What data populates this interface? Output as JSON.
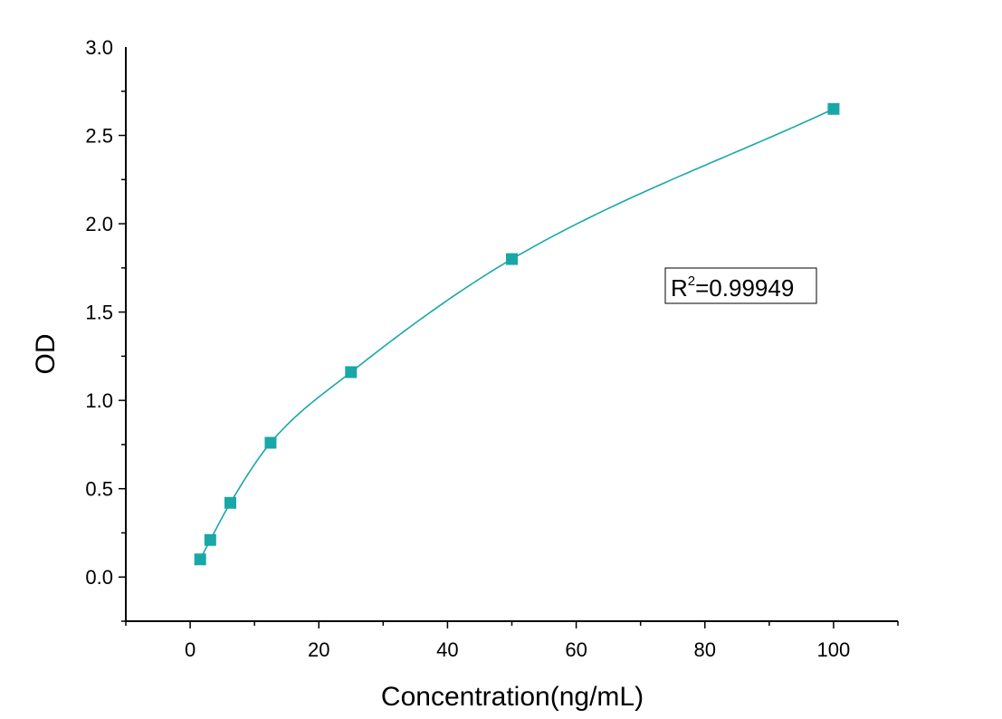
{
  "chart_data": {
    "type": "scatter",
    "xlabel": "Concentration(ng/mL)",
    "ylabel": "OD",
    "xlim": [
      -10,
      110
    ],
    "ylim": [
      -0.25,
      3.0
    ],
    "x_ticks": [
      0,
      20,
      40,
      60,
      80,
      100
    ],
    "y_ticks": [
      0.0,
      0.5,
      1.0,
      1.5,
      2.0,
      2.5,
      3.0
    ],
    "x_tick_labels": [
      "0",
      "20",
      "40",
      "60",
      "80",
      "100"
    ],
    "y_tick_labels": [
      "0.0",
      "0.5",
      "1.0",
      "1.5",
      "2.0",
      "2.5",
      "3.0"
    ],
    "grid": false,
    "color": "#1aa7a7",
    "series": [
      {
        "x": [
          1.56,
          3.13,
          6.25,
          12.5,
          25,
          50,
          100
        ],
        "y": [
          0.1,
          0.21,
          0.42,
          0.76,
          1.16,
          1.8,
          2.65
        ]
      }
    ],
    "fit_curve": true,
    "annotation": {
      "r2_prefix": "R",
      "r2_sup": "2",
      "r2_value": "=0.99949"
    }
  }
}
